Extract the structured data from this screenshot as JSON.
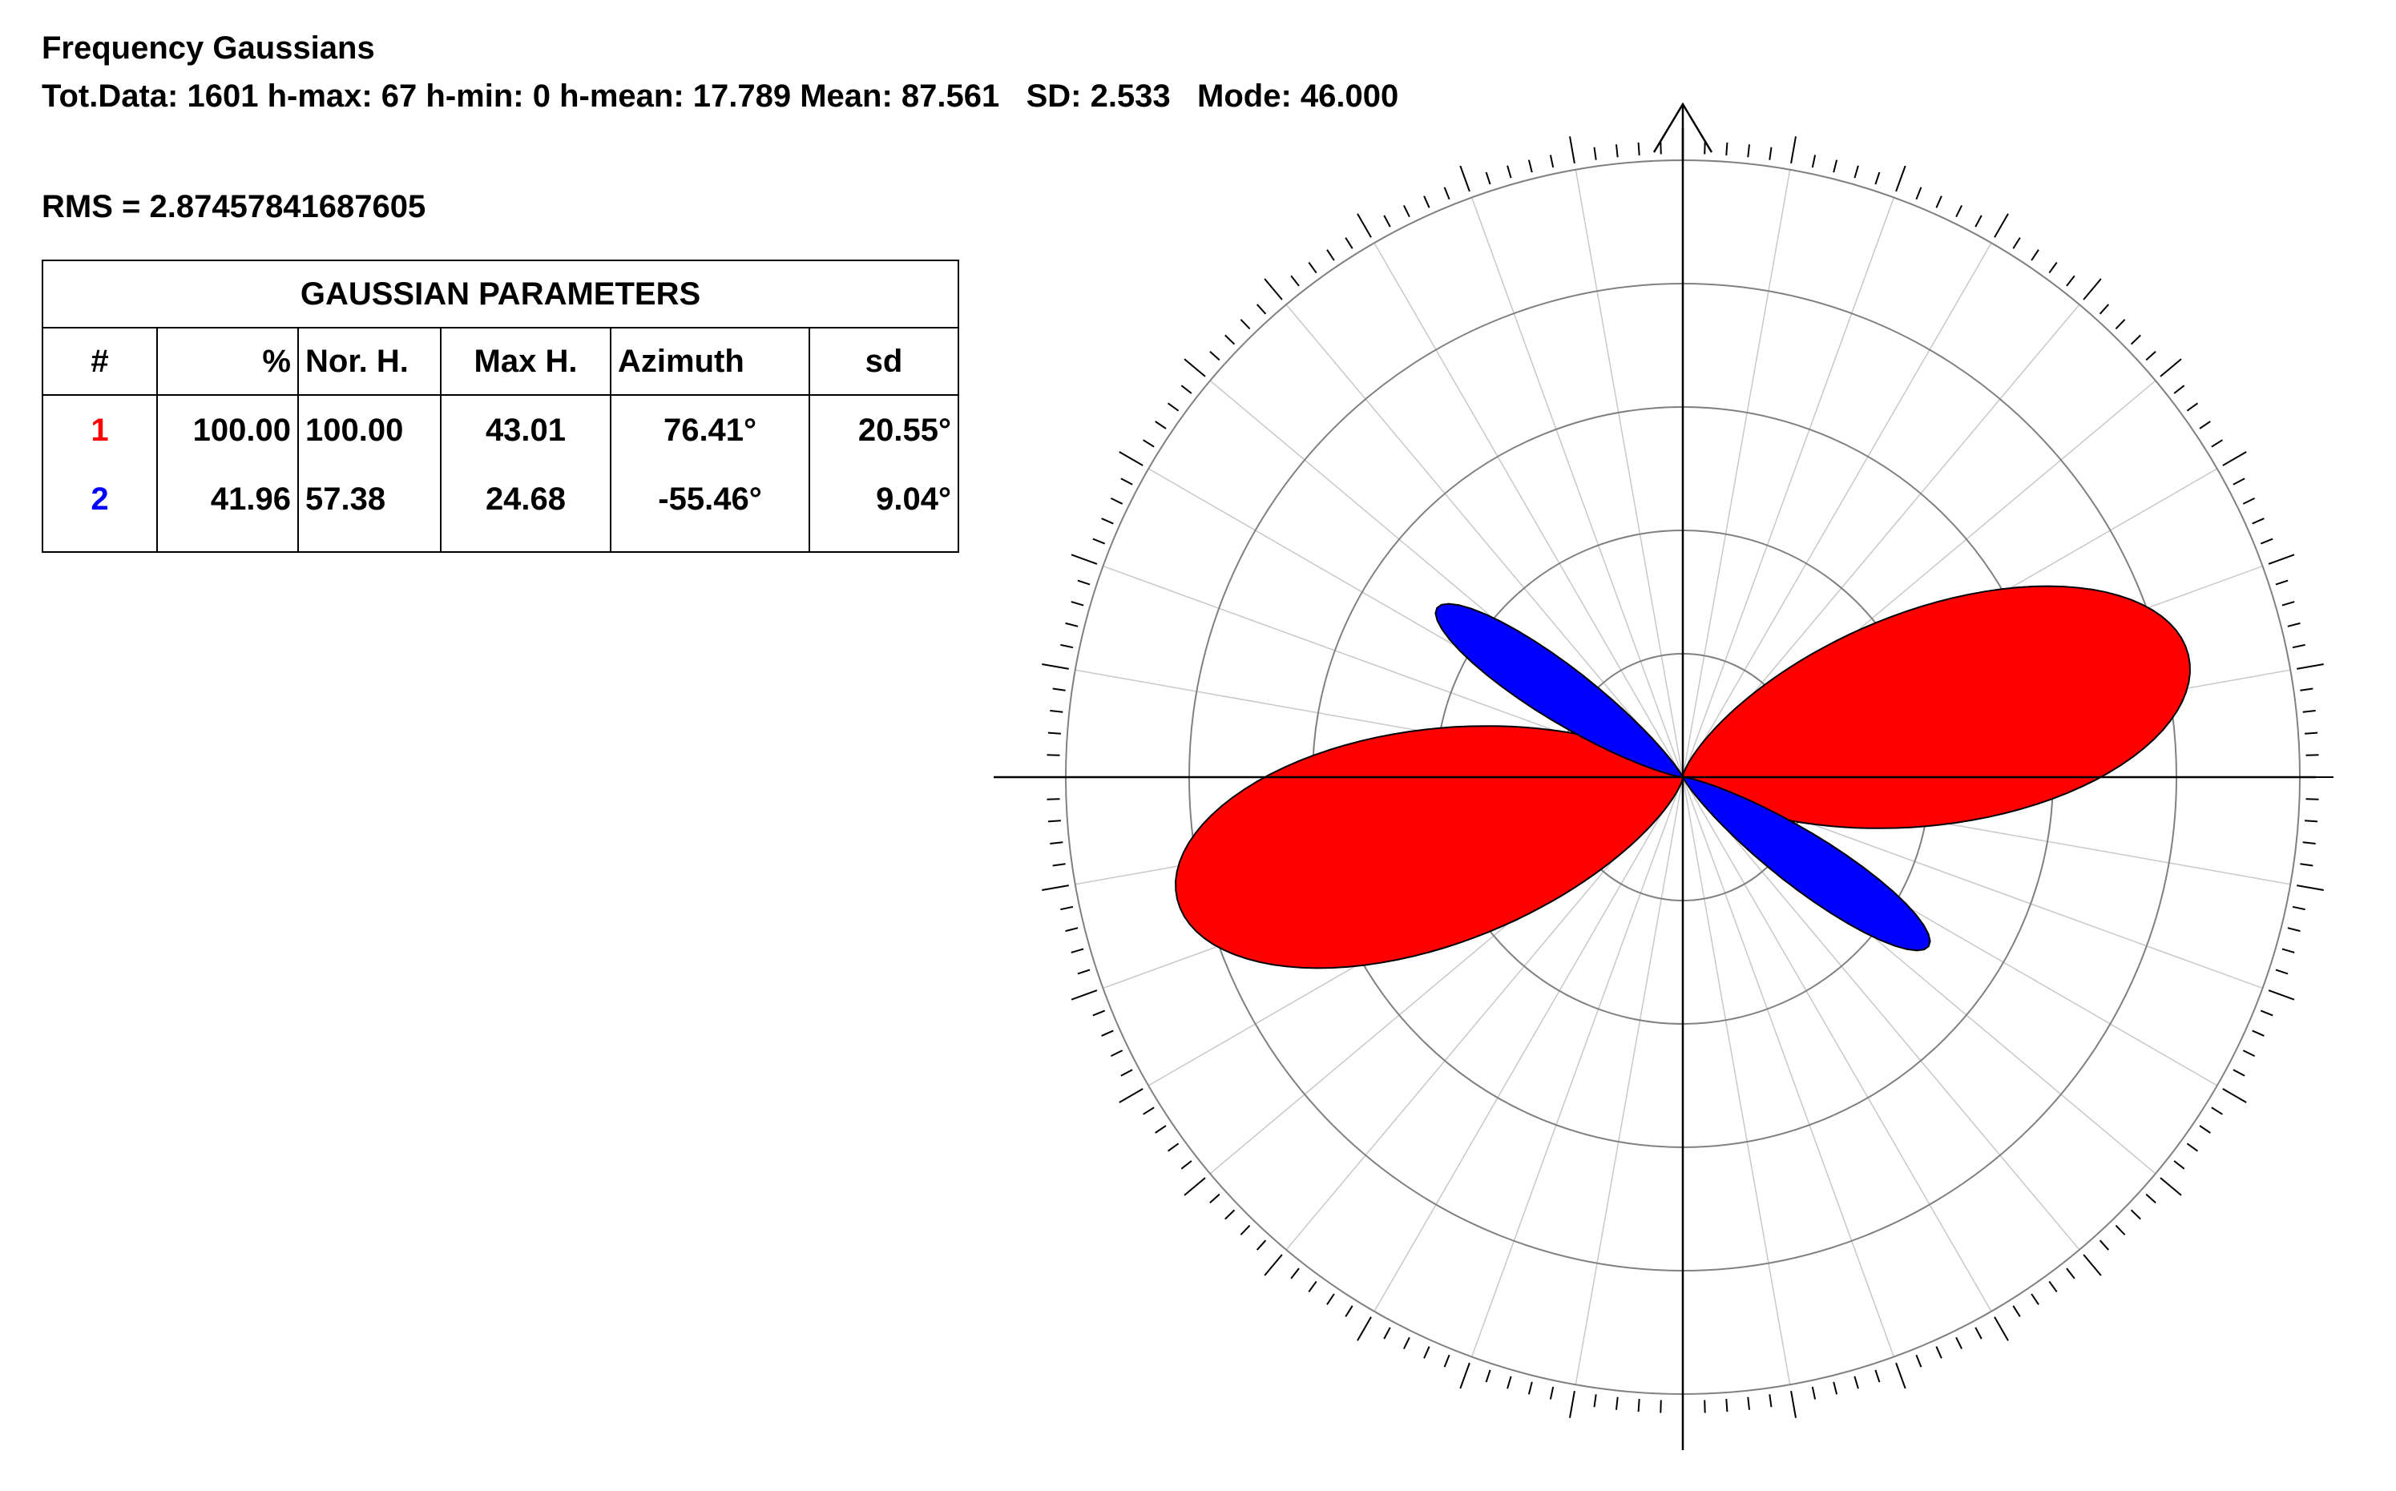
{
  "header": {
    "title": "Frequency Gaussians",
    "stats": "Tot.Data: 1601 h-max: 67 h-min: 0 h-mean: 17.789 Mean: 87.561   SD: 2.533   Mode: 46.000",
    "rms": "RMS = 2.87457841687605"
  },
  "table": {
    "caption": "GAUSSIAN PARAMETERS",
    "columns": [
      "#",
      "%",
      "Nor. H.",
      "Max H.",
      "Azimuth",
      "sd"
    ],
    "rows": [
      {
        "num": "1",
        "num_color": "#ff0000",
        "pct": "100.00",
        "nor_h": "100.00",
        "max_h": "43.01",
        "azimuth": "76.41°",
        "sd": "20.55°"
      },
      {
        "num": "2",
        "num_color": "#0000ff",
        "pct": "41.96",
        "nor_h": "57.38",
        "max_h": "24.68",
        "azimuth": "-55.46°",
        "sd": "9.04°"
      }
    ]
  },
  "chart_data": {
    "type": "rose",
    "angle_reference": "north, clockwise",
    "bidirectional": true,
    "series": [
      {
        "azimuth_deg": 76.41,
        "sd_deg": 20.55,
        "max_h": 43.01,
        "color": "#ff0000"
      },
      {
        "azimuth_deg": -55.46,
        "sd_deg": 9.04,
        "max_h": 24.68,
        "color": "#0000ff"
      }
    ],
    "radial_max": 50,
    "grid_rings": [
      10,
      20,
      30,
      40
    ],
    "spoke_step_deg": 10,
    "tick_step_deg": 2,
    "north_arrow": true,
    "grid": true
  }
}
